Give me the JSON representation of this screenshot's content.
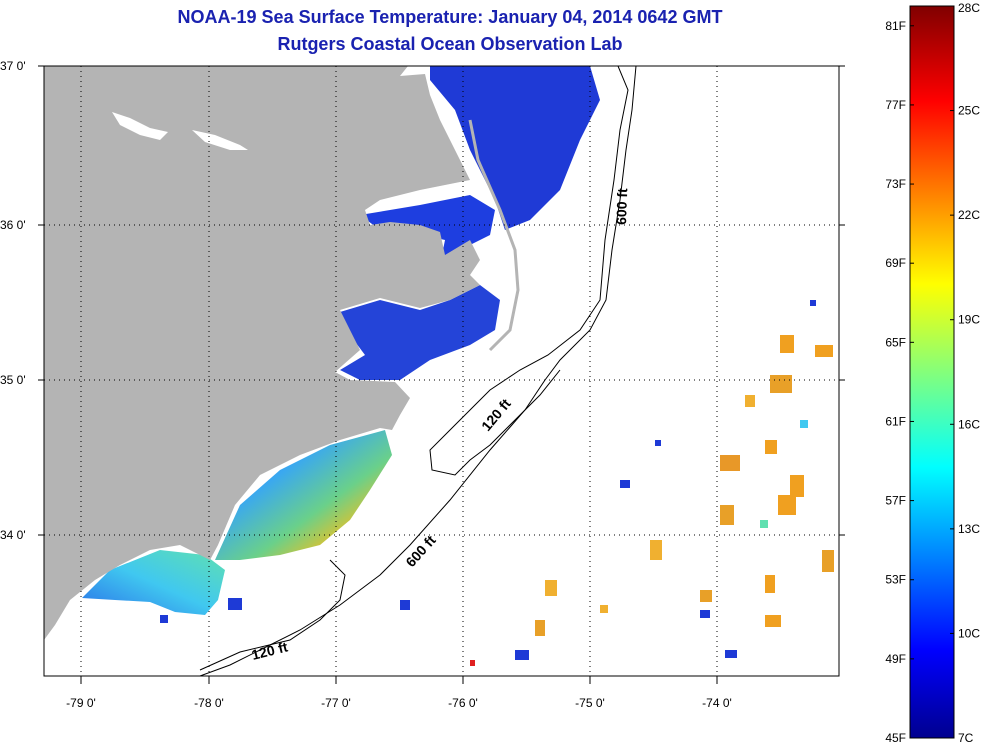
{
  "title": {
    "line1": "NOAA-19 Sea Surface Temperature:  January 04, 2014 0642 GMT",
    "line2": "Rutgers Coastal Ocean Observation Lab"
  },
  "map": {
    "lat_labels": [
      "37 0'",
      "36 0'",
      "35 0'",
      "34 0'"
    ],
    "lon_labels": [
      "-79 0'",
      "-78 0'",
      "-77 0'",
      "-76 0'",
      "-75 0'",
      "-74 0'"
    ],
    "contours": [
      "600 ft",
      "120 ft",
      "600 ft",
      "120 ft"
    ],
    "colors": {
      "land": "#b4b4b4",
      "ocean_nodata": "#ffffff",
      "grid": "#000000"
    }
  },
  "colorbar": {
    "fahrenheit": [
      "81F",
      "77F",
      "73F",
      "69F",
      "65F",
      "61F",
      "57F",
      "53F",
      "49F",
      "45F"
    ],
    "celsius": [
      "28C",
      "25C",
      "22C",
      "19C",
      "16C",
      "13C",
      "10C",
      "7C"
    ],
    "range_f": [
      45,
      82
    ],
    "range_c": [
      7,
      28
    ]
  }
}
